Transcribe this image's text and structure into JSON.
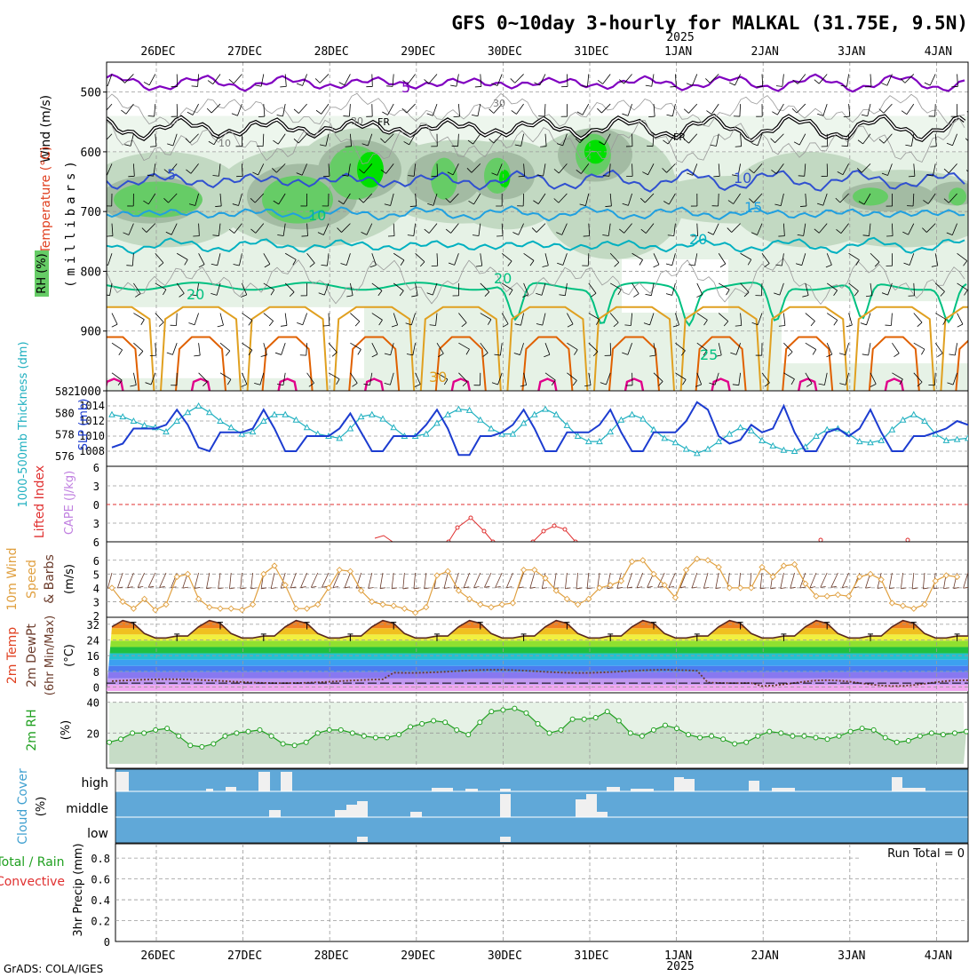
{
  "title": "GFS 0~10day 3-hourly for MALKAL (31.75E, 9.5N)",
  "credit": "GrADS: COLA/IGES",
  "year_label": "2025",
  "dates": [
    "26DEC",
    "27DEC",
    "28DEC",
    "29DEC",
    "30DEC",
    "31DEC",
    "1JAN",
    "2JAN",
    "3JAN",
    "4JAN"
  ],
  "colors": {
    "rh_light": "#e6f2e6",
    "rh_mid": "#c2d9c2",
    "rh_dark": "#a3bba3",
    "rh_green": "#66cc66",
    "rh_bright": "#00e000",
    "wind_purple": "#8000c0",
    "wind_black": "#000000",
    "temp_blue": "#3050d0",
    "temp_cyan": "#20a0e0",
    "temp_teal": "#00b0c0",
    "temp_green": "#00c080",
    "temp_orange": "#e0a020",
    "temp_dark_orange": "#e06000",
    "temp_magenta": "#e0008a",
    "slp": "#1c3cd0",
    "thickness": "#20b0c0",
    "lifted": "#e03030",
    "cape": "#c080e0",
    "wind10": "#e0a040",
    "dewpt": "#6a3a2a",
    "rh2m": "#20a020",
    "cloud": "#60a8d8",
    "precip_total": "#20a020",
    "precip_conv": "#e03030"
  },
  "charts": {
    "upper_air": {
      "ylabel_wind": "Wind (m/s)",
      "ylabel_temp": "Temperature (°C)",
      "ylabel_rh": "RH (%)",
      "ylabel_p": "(millibars)",
      "yticks": [
        "500",
        "600",
        "700",
        "800",
        "900",
        "1000"
      ],
      "contour_labels": [
        "5",
        "FR",
        "FR",
        "5",
        "10",
        "10",
        "15",
        "20",
        "20",
        "20",
        "25",
        "30",
        "30",
        "10",
        "30"
      ]
    },
    "slp_thickness": {
      "ylabel_thk": "1000-500mb Thickness (dm)",
      "ylabel_slp": "SLP (mb)",
      "left_ticks": [
        "582",
        "580",
        "578",
        "576"
      ],
      "right_ticks": [
        "1014",
        "1012",
        "1010",
        "1008"
      ]
    },
    "cape_li": {
      "ylabel_li": "Lifted Index",
      "ylabel_cape": "CAPE (J/kg)",
      "left_ticks": [
        "6",
        "3",
        "0",
        "3",
        "6"
      ]
    },
    "wind10m": {
      "ylabel_a": "10m Wind",
      "ylabel_b": "Speed",
      "ylabel_c": "& Barbs",
      "ylabel_unit": "(m/s)",
      "ticks": [
        "6",
        "5",
        "4",
        "3",
        "2"
      ]
    },
    "temp2m": {
      "ylabel_a": "2m Temp",
      "ylabel_b": "2m DewPt",
      "ylabel_c": "(6hr Min/Max)",
      "ylabel_unit": "(°C)",
      "ticks": [
        "32",
        "24",
        "16",
        "8",
        "0"
      ],
      "bands": [
        "#f0a8f0",
        "#c098f0",
        "#8878f0",
        "#4c7cf0",
        "#3ca0f0",
        "#24c0d0",
        "#20c040",
        "#90e030",
        "#f0f040",
        "#f0c020",
        "#f08020",
        "#e04020"
      ]
    },
    "rh2m": {
      "ylabel": "2m RH",
      "ylabel_unit": "(%)",
      "ticks": [
        "40",
        "20"
      ]
    },
    "cloud": {
      "ylabel": "Cloud Cover",
      "ylabel_unit": "(%)",
      "levels": [
        "high",
        "middle",
        "low"
      ]
    },
    "precip": {
      "ylabel_a": "Total / Rain",
      "ylabel_b": "Convective",
      "ylabel_c": "3hr Precip (mm)",
      "ticks": [
        "0.8",
        "0.6",
        "0.4",
        "0.2",
        "0"
      ],
      "run_total": "Run Total = 0"
    }
  },
  "chart_data": [
    {
      "type": "line",
      "title": "1000-500mb Thickness / SLP",
      "x": [
        "25DEC12Z",
        "25DEC15Z",
        "25DEC18Z",
        "25DEC21Z",
        "26DEC00Z",
        "26DEC03Z",
        "26DEC06Z",
        "26DEC09Z",
        "26DEC12Z",
        "26DEC15Z",
        "26DEC18Z",
        "26DEC21Z",
        "27DEC00Z",
        "27DEC03Z",
        "27DEC06Z",
        "27DEC09Z",
        "27DEC12Z",
        "27DEC15Z",
        "27DEC18Z",
        "27DEC21Z",
        "28DEC00Z",
        "28DEC03Z",
        "28DEC06Z",
        "28DEC09Z",
        "28DEC12Z",
        "28DEC15Z",
        "28DEC18Z",
        "28DEC21Z",
        "29DEC00Z",
        "29DEC03Z",
        "29DEC06Z",
        "29DEC09Z",
        "29DEC12Z",
        "29DEC15Z",
        "29DEC18Z",
        "29DEC21Z",
        "30DEC00Z",
        "30DEC03Z",
        "30DEC06Z",
        "30DEC09Z",
        "30DEC12Z",
        "30DEC15Z",
        "30DEC18Z",
        "30DEC21Z",
        "31DEC00Z",
        "31DEC03Z",
        "31DEC06Z",
        "31DEC09Z",
        "31DEC12Z",
        "31DEC15Z",
        "31DEC18Z",
        "31DEC21Z",
        "1JAN00Z",
        "1JAN03Z",
        "1JAN06Z",
        "1JAN09Z",
        "1JAN12Z",
        "1JAN15Z",
        "1JAN18Z",
        "1JAN21Z",
        "2JAN00Z",
        "2JAN03Z",
        "2JAN06Z",
        "2JAN09Z",
        "2JAN12Z",
        "2JAN15Z",
        "2JAN18Z",
        "2JAN21Z",
        "3JAN00Z",
        "3JAN03Z",
        "3JAN06Z",
        "3JAN09Z",
        "3JAN12Z",
        "3JAN15Z",
        "3JAN18Z",
        "3JAN21Z",
        "4JAN00Z",
        "4JAN03Z",
        "4JAN06Z",
        "4JAN09Z",
        "4JAN12Z"
      ],
      "series": [
        {
          "name": "SLP (mb)",
          "values": [
            1008.5,
            1009,
            1011,
            1011,
            1011,
            1011.5,
            1013.5,
            1011.5,
            1008.5,
            1008,
            1010.5,
            1010.5,
            1010.5,
            1011,
            1013.5,
            1011,
            1008,
            1008,
            1010,
            1010,
            1010,
            1011,
            1013,
            1010.5,
            1008,
            1008,
            1010,
            1010,
            1010,
            1011.5,
            1013.5,
            1011,
            1007.5,
            1007.5,
            1010,
            1010,
            1010.5,
            1011.5,
            1013.5,
            1011,
            1008,
            1008,
            1010.5,
            1010.5,
            1010.5,
            1011.5,
            1013.5,
            1010.5,
            1008,
            1008,
            1010.5,
            1010.5,
            1010.5,
            1012,
            1014.5,
            1013.5,
            1010,
            1009,
            1009.5,
            1011.5,
            1010.5,
            1011,
            1014,
            1010.5,
            1008,
            1008,
            1010.5,
            1011,
            1010,
            1011,
            1013.5,
            1010.5,
            1008,
            1008,
            1010,
            1010,
            1010.5,
            1011,
            1012,
            1011.5,
            1012
          ]
        },
        {
          "name": "1000-500mb Thickness (dm)",
          "values": [
            579.8,
            579.6,
            579.2,
            578.8,
            578.6,
            578.2,
            579.2,
            580,
            580.6,
            580,
            579.2,
            578.6,
            578,
            578.2,
            579.2,
            579.8,
            579.8,
            579.3,
            578.6,
            578,
            577.8,
            577.6,
            578.5,
            579.6,
            579.8,
            579.4,
            578.6,
            577.8,
            577.8,
            578,
            579,
            579.8,
            580.3,
            580.2,
            579.3,
            578.5,
            578,
            578,
            579,
            579.8,
            580.3,
            579.8,
            578.8,
            577.8,
            577.3,
            577.3,
            578.2,
            579.3,
            579.8,
            579.4,
            578.4,
            577.6,
            577.2,
            576.6,
            576.2,
            576.6,
            577.3,
            578,
            578.6,
            578.3,
            577.4,
            576.9,
            576.5,
            576.4,
            576.8,
            577.8,
            578.4,
            578.5,
            578,
            577.3,
            577.2,
            577.4,
            578.4,
            579.3,
            579.8,
            579.2,
            578,
            577.4,
            577.5,
            577.6,
            577.5
          ]
        }
      ],
      "ylim_left": [
        575,
        582
      ],
      "ylim_right": [
        1006,
        1016
      ]
    },
    {
      "type": "line",
      "title": "10m Wind Speed",
      "ylabel": "(m/s)",
      "ylim": [
        2,
        6.5
      ],
      "values": [
        4,
        3,
        2.5,
        3.2,
        2.4,
        2.8,
        4.8,
        5,
        3.2,
        2.6,
        2.5,
        2.5,
        2.4,
        2.8,
        5,
        5.6,
        4.2,
        2.5,
        2.5,
        2.8,
        4,
        5.3,
        5.2,
        3.8,
        3,
        2.8,
        2.7,
        2.5,
        2.2,
        2.6,
        4.9,
        5.2,
        3.8,
        3.2,
        2.8,
        2.6,
        2.8,
        2.9,
        5.3,
        5.3,
        4.7,
        3.8,
        3.2,
        2.8,
        3.2,
        4,
        4.2,
        4.5,
        5.9,
        6,
        5,
        4.2,
        3.3,
        5.3,
        6.1,
        6,
        5.5,
        4,
        4,
        4,
        5.5,
        4.8,
        5.6,
        5.7,
        4.3,
        3.4,
        3.4,
        3.5,
        3.4,
        4.8,
        5,
        4.6,
        2.9,
        2.7,
        2.5,
        2.8,
        4.5,
        4.9,
        4.8
      ]
    },
    {
      "type": "line",
      "title": "2m RH",
      "ylabel": "(%)",
      "ylim": [
        0,
        45
      ],
      "values": [
        14,
        16,
        20,
        20,
        22,
        23,
        18,
        12,
        11,
        13,
        18,
        20,
        21,
        22,
        18,
        13,
        12,
        14,
        20,
        22,
        22,
        20,
        18,
        17,
        17,
        19,
        24,
        26,
        28,
        27,
        22,
        19,
        27,
        34,
        35,
        36,
        33,
        26,
        20,
        22,
        29,
        29,
        30,
        34,
        28,
        20,
        18,
        22,
        25,
        23,
        19,
        17,
        18,
        16,
        13,
        14,
        18,
        21,
        20,
        18,
        18,
        17,
        16,
        18,
        21,
        23,
        22,
        17,
        14,
        15,
        18,
        20,
        19,
        20,
        21
      ]
    },
    {
      "type": "bar",
      "title": "3hr Precip (mm)",
      "ylim": [
        0,
        0.9
      ],
      "values": [
        0,
        0,
        0,
        0,
        0,
        0,
        0,
        0,
        0,
        0,
        0,
        0,
        0,
        0,
        0,
        0,
        0,
        0,
        0,
        0,
        0,
        0,
        0,
        0,
        0,
        0,
        0,
        0,
        0,
        0,
        0,
        0,
        0,
        0,
        0,
        0,
        0,
        0,
        0,
        0,
        0,
        0,
        0,
        0,
        0,
        0,
        0,
        0,
        0,
        0,
        0,
        0,
        0,
        0,
        0,
        0,
        0,
        0,
        0,
        0,
        0,
        0,
        0,
        0,
        0,
        0,
        0,
        0,
        0,
        0,
        0,
        0,
        0,
        0,
        0,
        0,
        0,
        0,
        0,
        0,
        0
      ]
    }
  ]
}
